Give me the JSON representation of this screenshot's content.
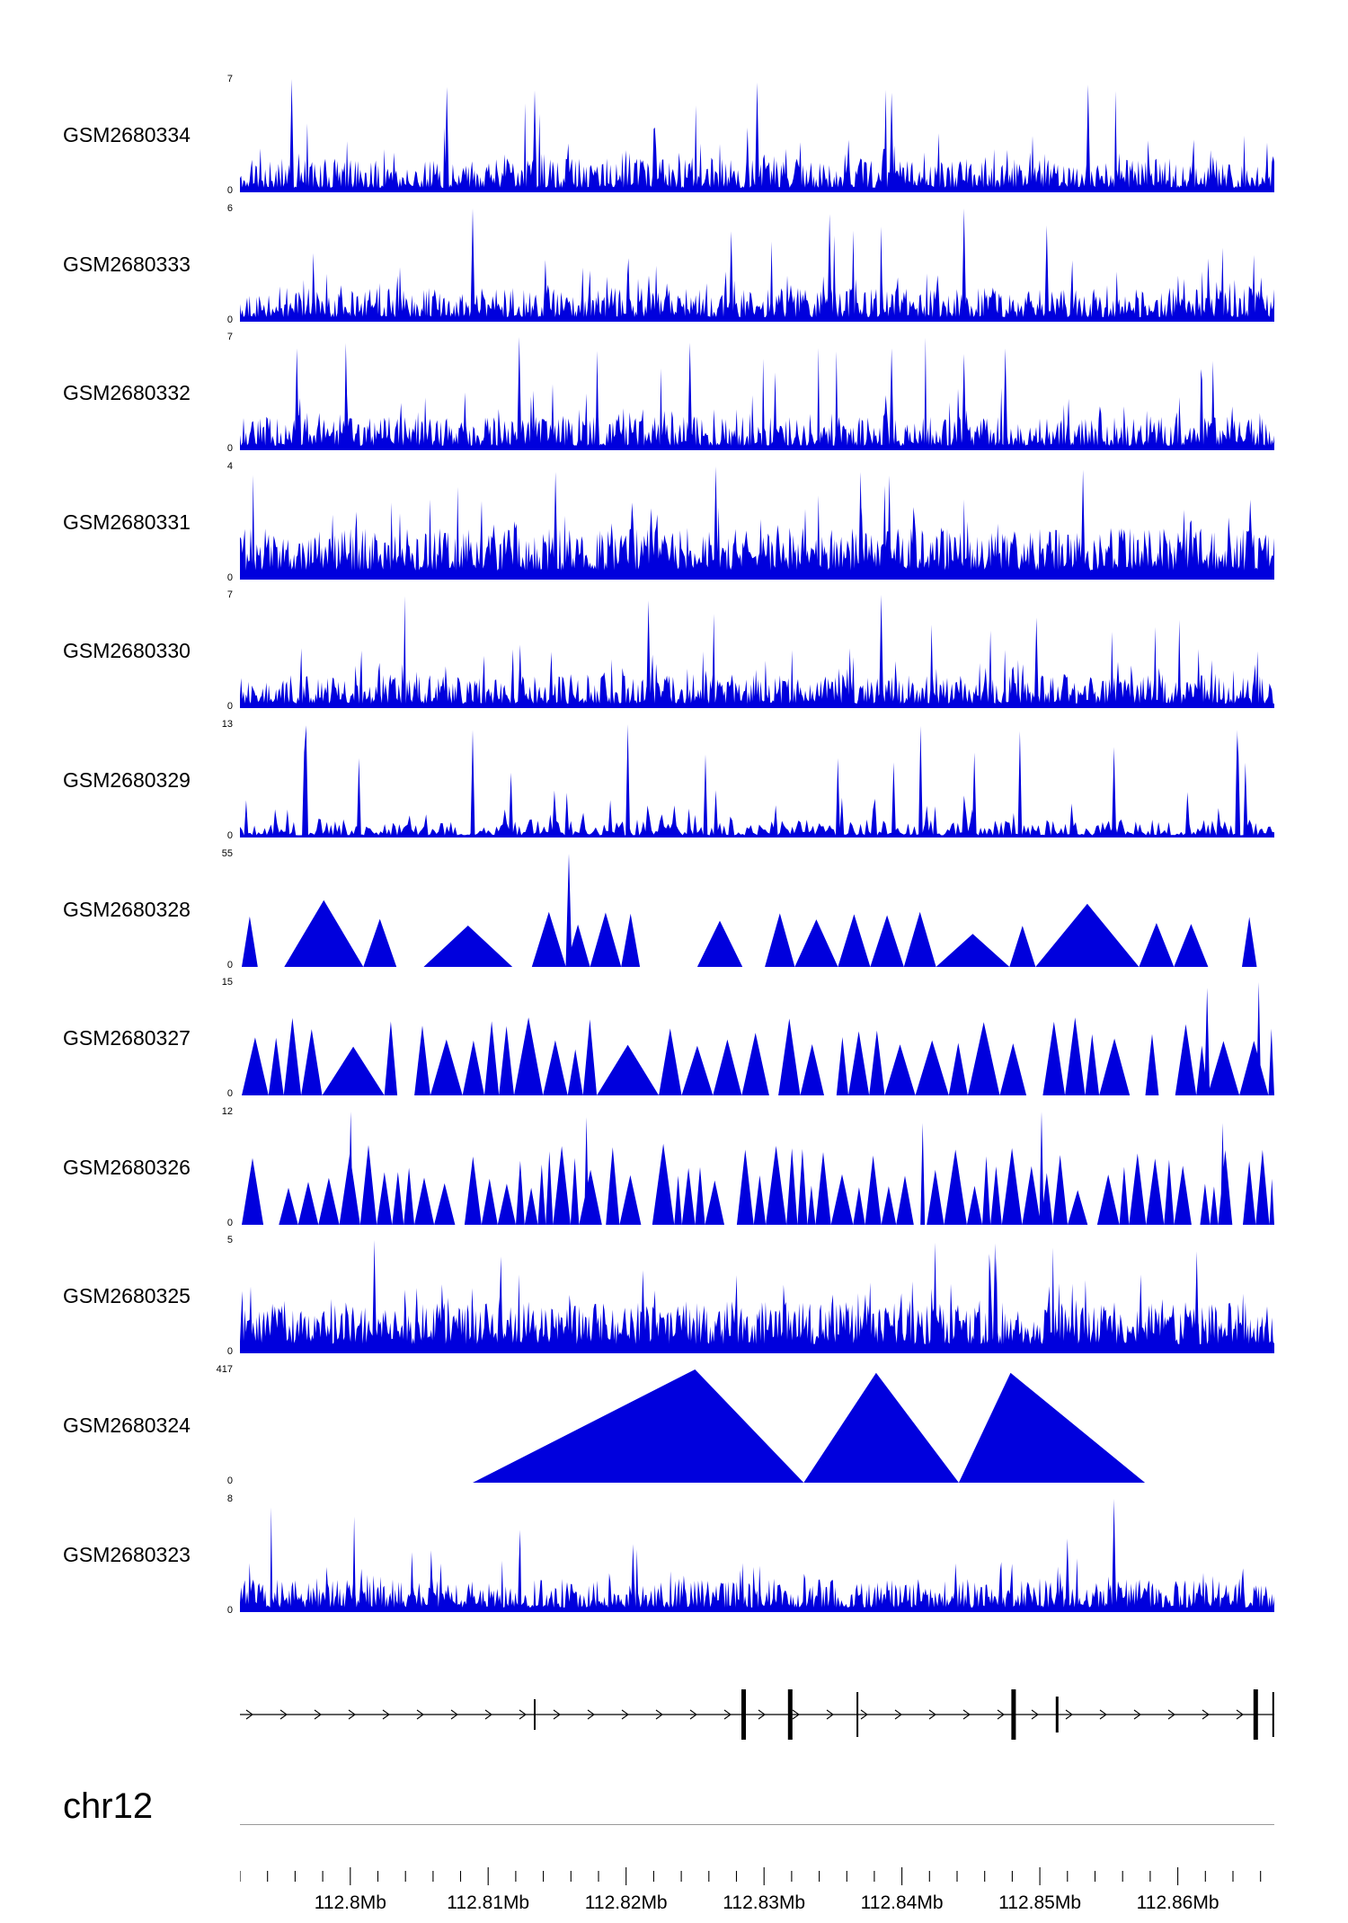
{
  "chart_data": {
    "type": "area",
    "title": "",
    "color": "#0000dd",
    "x_axis": {
      "chromosome": "chr12",
      "unit": "Mb",
      "start_mb": 112.792,
      "end_mb": 112.867,
      "minor_tick_mb": 0.002,
      "major_tick_mb": 0.01,
      "major_labels": [
        {
          "value_mb": 112.8,
          "label": "112.8Mb"
        },
        {
          "value_mb": 112.81,
          "label": "112.81Mb"
        },
        {
          "value_mb": 112.82,
          "label": "112.82Mb"
        },
        {
          "value_mb": 112.83,
          "label": "112.83Mb"
        },
        {
          "value_mb": 112.84,
          "label": "112.84Mb"
        },
        {
          "value_mb": 112.85,
          "label": "112.85Mb"
        },
        {
          "value_mb": 112.86,
          "label": "112.86Mb"
        }
      ]
    },
    "tracks": [
      {
        "name": "GSM2680334",
        "ymax": 7,
        "ymin": 0,
        "style": "dense",
        "seed": 11,
        "peaks": [
          {
            "x": 0.05,
            "h": 1.0
          },
          {
            "x": 0.2,
            "h": 0.93
          },
          {
            "x": 0.285,
            "h": 0.9
          },
          {
            "x": 0.5,
            "h": 0.97
          },
          {
            "x": 0.63,
            "h": 0.88
          },
          {
            "x": 0.82,
            "h": 0.95
          }
        ]
      },
      {
        "name": "GSM2680333",
        "ymax": 6,
        "ymin": 0,
        "style": "dense",
        "seed": 22,
        "peaks": [
          {
            "x": 0.225,
            "h": 1.0
          },
          {
            "x": 0.475,
            "h": 0.8
          },
          {
            "x": 0.57,
            "h": 0.95
          },
          {
            "x": 0.7,
            "h": 1.0
          },
          {
            "x": 0.78,
            "h": 0.85
          }
        ]
      },
      {
        "name": "GSM2680332",
        "ymax": 7,
        "ymin": 0,
        "style": "dense",
        "seed": 33,
        "peaks": [
          {
            "x": 0.055,
            "h": 0.9
          },
          {
            "x": 0.27,
            "h": 1.0
          },
          {
            "x": 0.435,
            "h": 0.95
          },
          {
            "x": 0.63,
            "h": 0.9
          },
          {
            "x": 0.7,
            "h": 0.85
          },
          {
            "x": 0.74,
            "h": 0.9
          }
        ]
      },
      {
        "name": "GSM2680331",
        "ymax": 4,
        "ymin": 0,
        "style": "dense_hi",
        "seed": 44,
        "peaks": [
          {
            "x": 0.305,
            "h": 0.95
          },
          {
            "x": 0.46,
            "h": 1.0
          },
          {
            "x": 0.6,
            "h": 0.95
          },
          {
            "x": 0.815,
            "h": 0.97
          }
        ]
      },
      {
        "name": "GSM2680330",
        "ymax": 7,
        "ymin": 0,
        "style": "dense",
        "seed": 55,
        "peaks": [
          {
            "x": 0.395,
            "h": 0.95
          },
          {
            "x": 0.62,
            "h": 1.0
          },
          {
            "x": 0.77,
            "h": 0.8
          }
        ]
      },
      {
        "name": "GSM2680329",
        "ymax": 13,
        "ymin": 0,
        "style": "sparse",
        "seed": 66,
        "peaks": [
          {
            "x": 0.115,
            "h": 0.7
          },
          {
            "x": 0.225,
            "h": 0.95
          },
          {
            "x": 0.375,
            "h": 1.0
          },
          {
            "x": 0.71,
            "h": 0.75
          },
          {
            "x": 0.845,
            "h": 0.8
          },
          {
            "x": 0.965,
            "h": 0.9
          }
        ]
      },
      {
        "name": "GSM2680328",
        "ymax": 55,
        "ymin": 0,
        "style": "tri_wide",
        "seed": 77,
        "peaks": [
          {
            "x": 0.318,
            "h": 1.0,
            "w": 7
          }
        ]
      },
      {
        "name": "GSM2680327",
        "ymax": 15,
        "ymin": 0,
        "style": "tri_med",
        "seed": 88,
        "peaks": [
          {
            "x": 0.935,
            "h": 0.95,
            "w": 6
          },
          {
            "x": 0.985,
            "h": 1.0,
            "w": 5
          }
        ]
      },
      {
        "name": "GSM2680326",
        "ymax": 12,
        "ymin": 0,
        "style": "tri_dense",
        "seed": 99,
        "peaks": [
          {
            "x": 0.107,
            "h": 1.0,
            "w": 5
          },
          {
            "x": 0.335,
            "h": 0.95,
            "w": 5
          },
          {
            "x": 0.66,
            "h": 0.9,
            "w": 5
          },
          {
            "x": 0.775,
            "h": 1.0,
            "w": 5
          },
          {
            "x": 0.95,
            "h": 0.9,
            "w": 5
          }
        ]
      },
      {
        "name": "GSM2680325",
        "ymax": 5,
        "ymin": 0,
        "style": "dense_hi",
        "seed": 110,
        "peaks": [
          {
            "x": 0.13,
            "h": 1.0
          },
          {
            "x": 0.73,
            "h": 0.97
          },
          {
            "x": 0.925,
            "h": 0.9
          }
        ]
      },
      {
        "name": "GSM2680324",
        "ymax": 417,
        "ymin": 0,
        "style": "big",
        "seed": 121,
        "shapes": [
          {
            "x0": 0.225,
            "xp": 0.44,
            "x1": 0.545,
            "h": 1.0
          },
          {
            "x0": 0.545,
            "xp": 0.615,
            "x1": 0.695,
            "h": 0.97
          },
          {
            "x0": 0.695,
            "xp": 0.745,
            "x1": 0.875,
            "h": 0.97
          }
        ]
      },
      {
        "name": "GSM2680323",
        "ymax": 8,
        "ymin": 0,
        "style": "dense",
        "seed": 132,
        "peaks": [
          {
            "x": 0.38,
            "h": 0.6
          },
          {
            "x": 0.8,
            "h": 0.65
          },
          {
            "x": 0.845,
            "h": 1.0
          }
        ]
      }
    ],
    "gene_model": {
      "strand": "plus",
      "arrow_direction": "right",
      "exons": [
        {
          "pos": 0.285,
          "h": 34,
          "w": 2
        },
        {
          "pos": 0.487,
          "h": 56,
          "w": 5
        },
        {
          "pos": 0.532,
          "h": 56,
          "w": 5
        },
        {
          "pos": 0.597,
          "h": 50,
          "w": 2
        },
        {
          "pos": 0.748,
          "h": 56,
          "w": 5
        },
        {
          "pos": 0.79,
          "h": 40,
          "w": 3
        },
        {
          "pos": 0.982,
          "h": 56,
          "w": 5
        },
        {
          "pos": 0.999,
          "h": 50,
          "w": 2
        }
      ]
    }
  }
}
